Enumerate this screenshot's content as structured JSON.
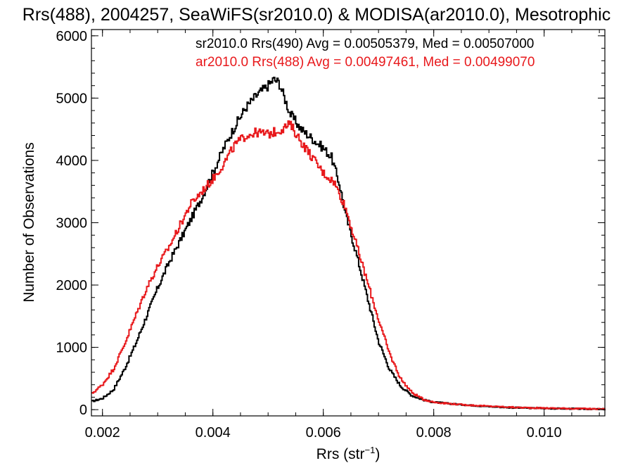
{
  "chart_data": {
    "type": "line",
    "title": "Rrs(488), 2004257, SeaWiFS(sr2010.0) & MODISA(ar2010.0), Mesotrophic",
    "xlabel": "Rrs (str",
    "xlabel_sup": "−1",
    "xlabel_close": ")",
    "ylabel": "Number of Observations",
    "xlim": [
      0.0018,
      0.0111
    ],
    "ylim": [
      -100,
      6100
    ],
    "xticks": [
      0.002,
      0.004,
      0.006,
      0.008,
      0.01
    ],
    "xtick_labels": [
      "0.002",
      "0.004",
      "0.006",
      "0.008",
      "0.010"
    ],
    "yticks": [
      0,
      1000,
      2000,
      3000,
      4000,
      5000,
      6000
    ],
    "ytick_labels": [
      "0",
      "1000",
      "2000",
      "3000",
      "4000",
      "5000",
      "6000"
    ],
    "grid": false,
    "annotations": [
      {
        "text": "sr2010.0 Rrs(490) Avg = 0.00505379, Med = 0.00507000",
        "color": "#000000"
      },
      {
        "text": "ar2010.0 Rrs(488) Avg = 0.00497461, Med = 0.00499070",
        "color": "#e8191c"
      }
    ],
    "series": [
      {
        "color": "#000000",
        "points": [
          [
            0.0018,
            130
          ],
          [
            0.002,
            180
          ],
          [
            0.0022,
            320
          ],
          [
            0.0024,
            650
          ],
          [
            0.0026,
            1050
          ],
          [
            0.0028,
            1500
          ],
          [
            0.003,
            1950
          ],
          [
            0.0032,
            2350
          ],
          [
            0.0034,
            2700
          ],
          [
            0.0036,
            3050
          ],
          [
            0.0038,
            3400
          ],
          [
            0.004,
            3800
          ],
          [
            0.0042,
            4200
          ],
          [
            0.0044,
            4550
          ],
          [
            0.0046,
            4850
          ],
          [
            0.0048,
            5050
          ],
          [
            0.005,
            5200
          ],
          [
            0.0051,
            5300
          ],
          [
            0.0052,
            5250
          ],
          [
            0.0053,
            5000
          ],
          [
            0.0054,
            4750
          ],
          [
            0.0056,
            4500
          ],
          [
            0.0058,
            4350
          ],
          [
            0.006,
            4200
          ],
          [
            0.00615,
            4050
          ],
          [
            0.0063,
            3600
          ],
          [
            0.0064,
            3150
          ],
          [
            0.0066,
            2500
          ],
          [
            0.0068,
            1800
          ],
          [
            0.007,
            1100
          ],
          [
            0.0072,
            650
          ],
          [
            0.0074,
            380
          ],
          [
            0.0076,
            230
          ],
          [
            0.0078,
            160
          ],
          [
            0.008,
            120
          ],
          [
            0.0085,
            80
          ],
          [
            0.009,
            50
          ],
          [
            0.0095,
            30
          ],
          [
            0.01,
            20
          ],
          [
            0.0105,
            15
          ],
          [
            0.011,
            8
          ]
        ]
      },
      {
        "color": "#e8191c",
        "points": [
          [
            0.0018,
            250
          ],
          [
            0.002,
            400
          ],
          [
            0.0022,
            650
          ],
          [
            0.0024,
            1050
          ],
          [
            0.0026,
            1500
          ],
          [
            0.0028,
            1950
          ],
          [
            0.003,
            2300
          ],
          [
            0.0032,
            2600
          ],
          [
            0.0034,
            2950
          ],
          [
            0.0036,
            3300
          ],
          [
            0.0038,
            3500
          ],
          [
            0.004,
            3700
          ],
          [
            0.0042,
            3950
          ],
          [
            0.0044,
            4250
          ],
          [
            0.0046,
            4400
          ],
          [
            0.0048,
            4450
          ],
          [
            0.005,
            4420
          ],
          [
            0.0052,
            4480
          ],
          [
            0.0054,
            4580
          ],
          [
            0.0056,
            4300
          ],
          [
            0.0058,
            4050
          ],
          [
            0.006,
            3800
          ],
          [
            0.0062,
            3650
          ],
          [
            0.0064,
            3250
          ],
          [
            0.0066,
            2650
          ],
          [
            0.0068,
            2050
          ],
          [
            0.007,
            1450
          ],
          [
            0.0072,
            900
          ],
          [
            0.0074,
            500
          ],
          [
            0.0076,
            280
          ],
          [
            0.0078,
            170
          ],
          [
            0.008,
            120
          ],
          [
            0.0085,
            80
          ],
          [
            0.009,
            55
          ],
          [
            0.0095,
            35
          ],
          [
            0.01,
            25
          ],
          [
            0.0105,
            18
          ],
          [
            0.011,
            10
          ]
        ]
      }
    ]
  }
}
